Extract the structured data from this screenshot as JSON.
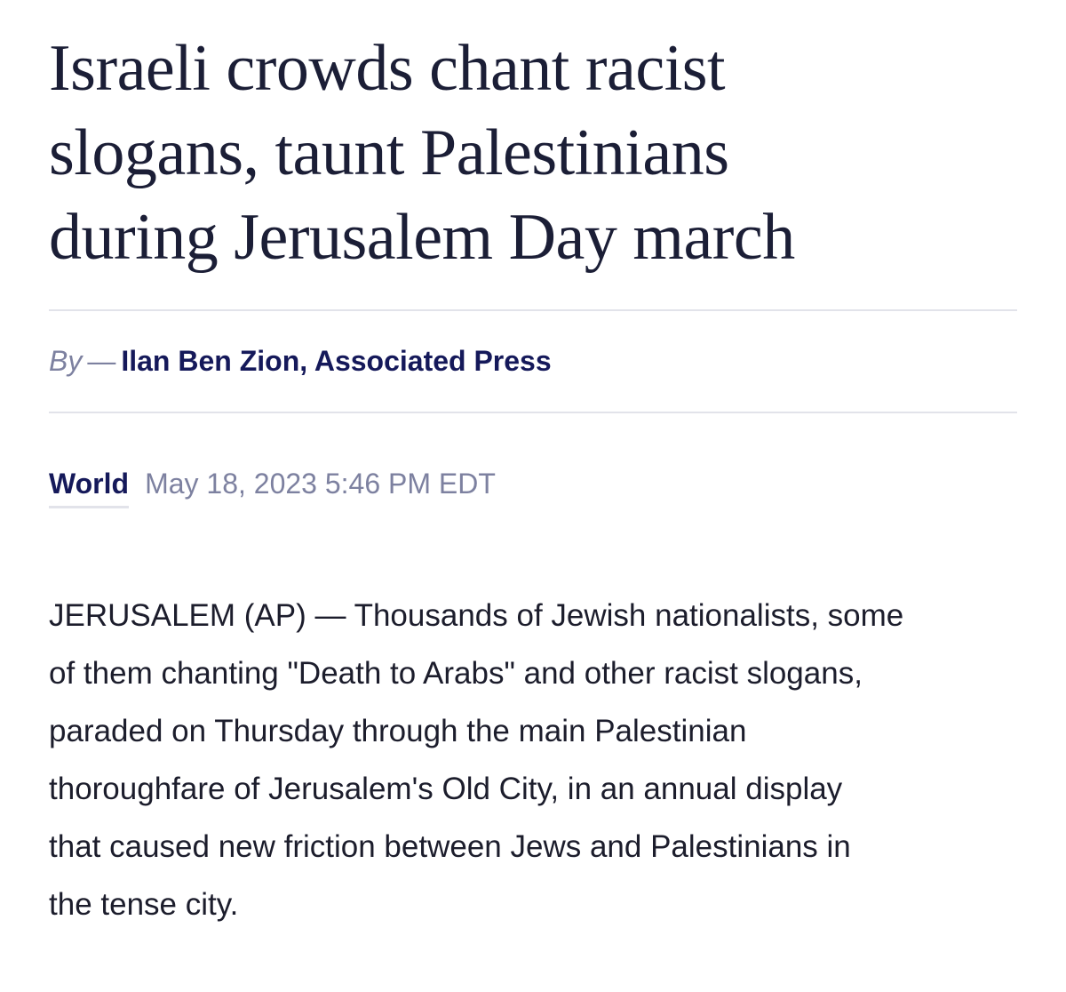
{
  "article": {
    "headline": {
      "lines": [
        "Israeli crowds chant racist",
        "slogans, taunt Palestinians",
        "during Jerusalem Day march"
      ]
    },
    "byline": {
      "prefix": "By",
      "dash": "—",
      "author": "Ilan Ben Zion, Associated Press"
    },
    "meta": {
      "section": "World",
      "date": "May 18, 2023 5:46 PM EDT"
    },
    "body": {
      "lines": [
        "JERUSALEM (AP) — Thousands of Jewish nationalists, some",
        "of them chanting \"Death to Arabs\" and other racist slogans,",
        "paraded on Thursday through the main Palestinian",
        "thoroughfare of Jerusalem's Old City, in an annual display",
        "that caused new friction between Jews and Palestinians in",
        "the tense city."
      ]
    }
  }
}
